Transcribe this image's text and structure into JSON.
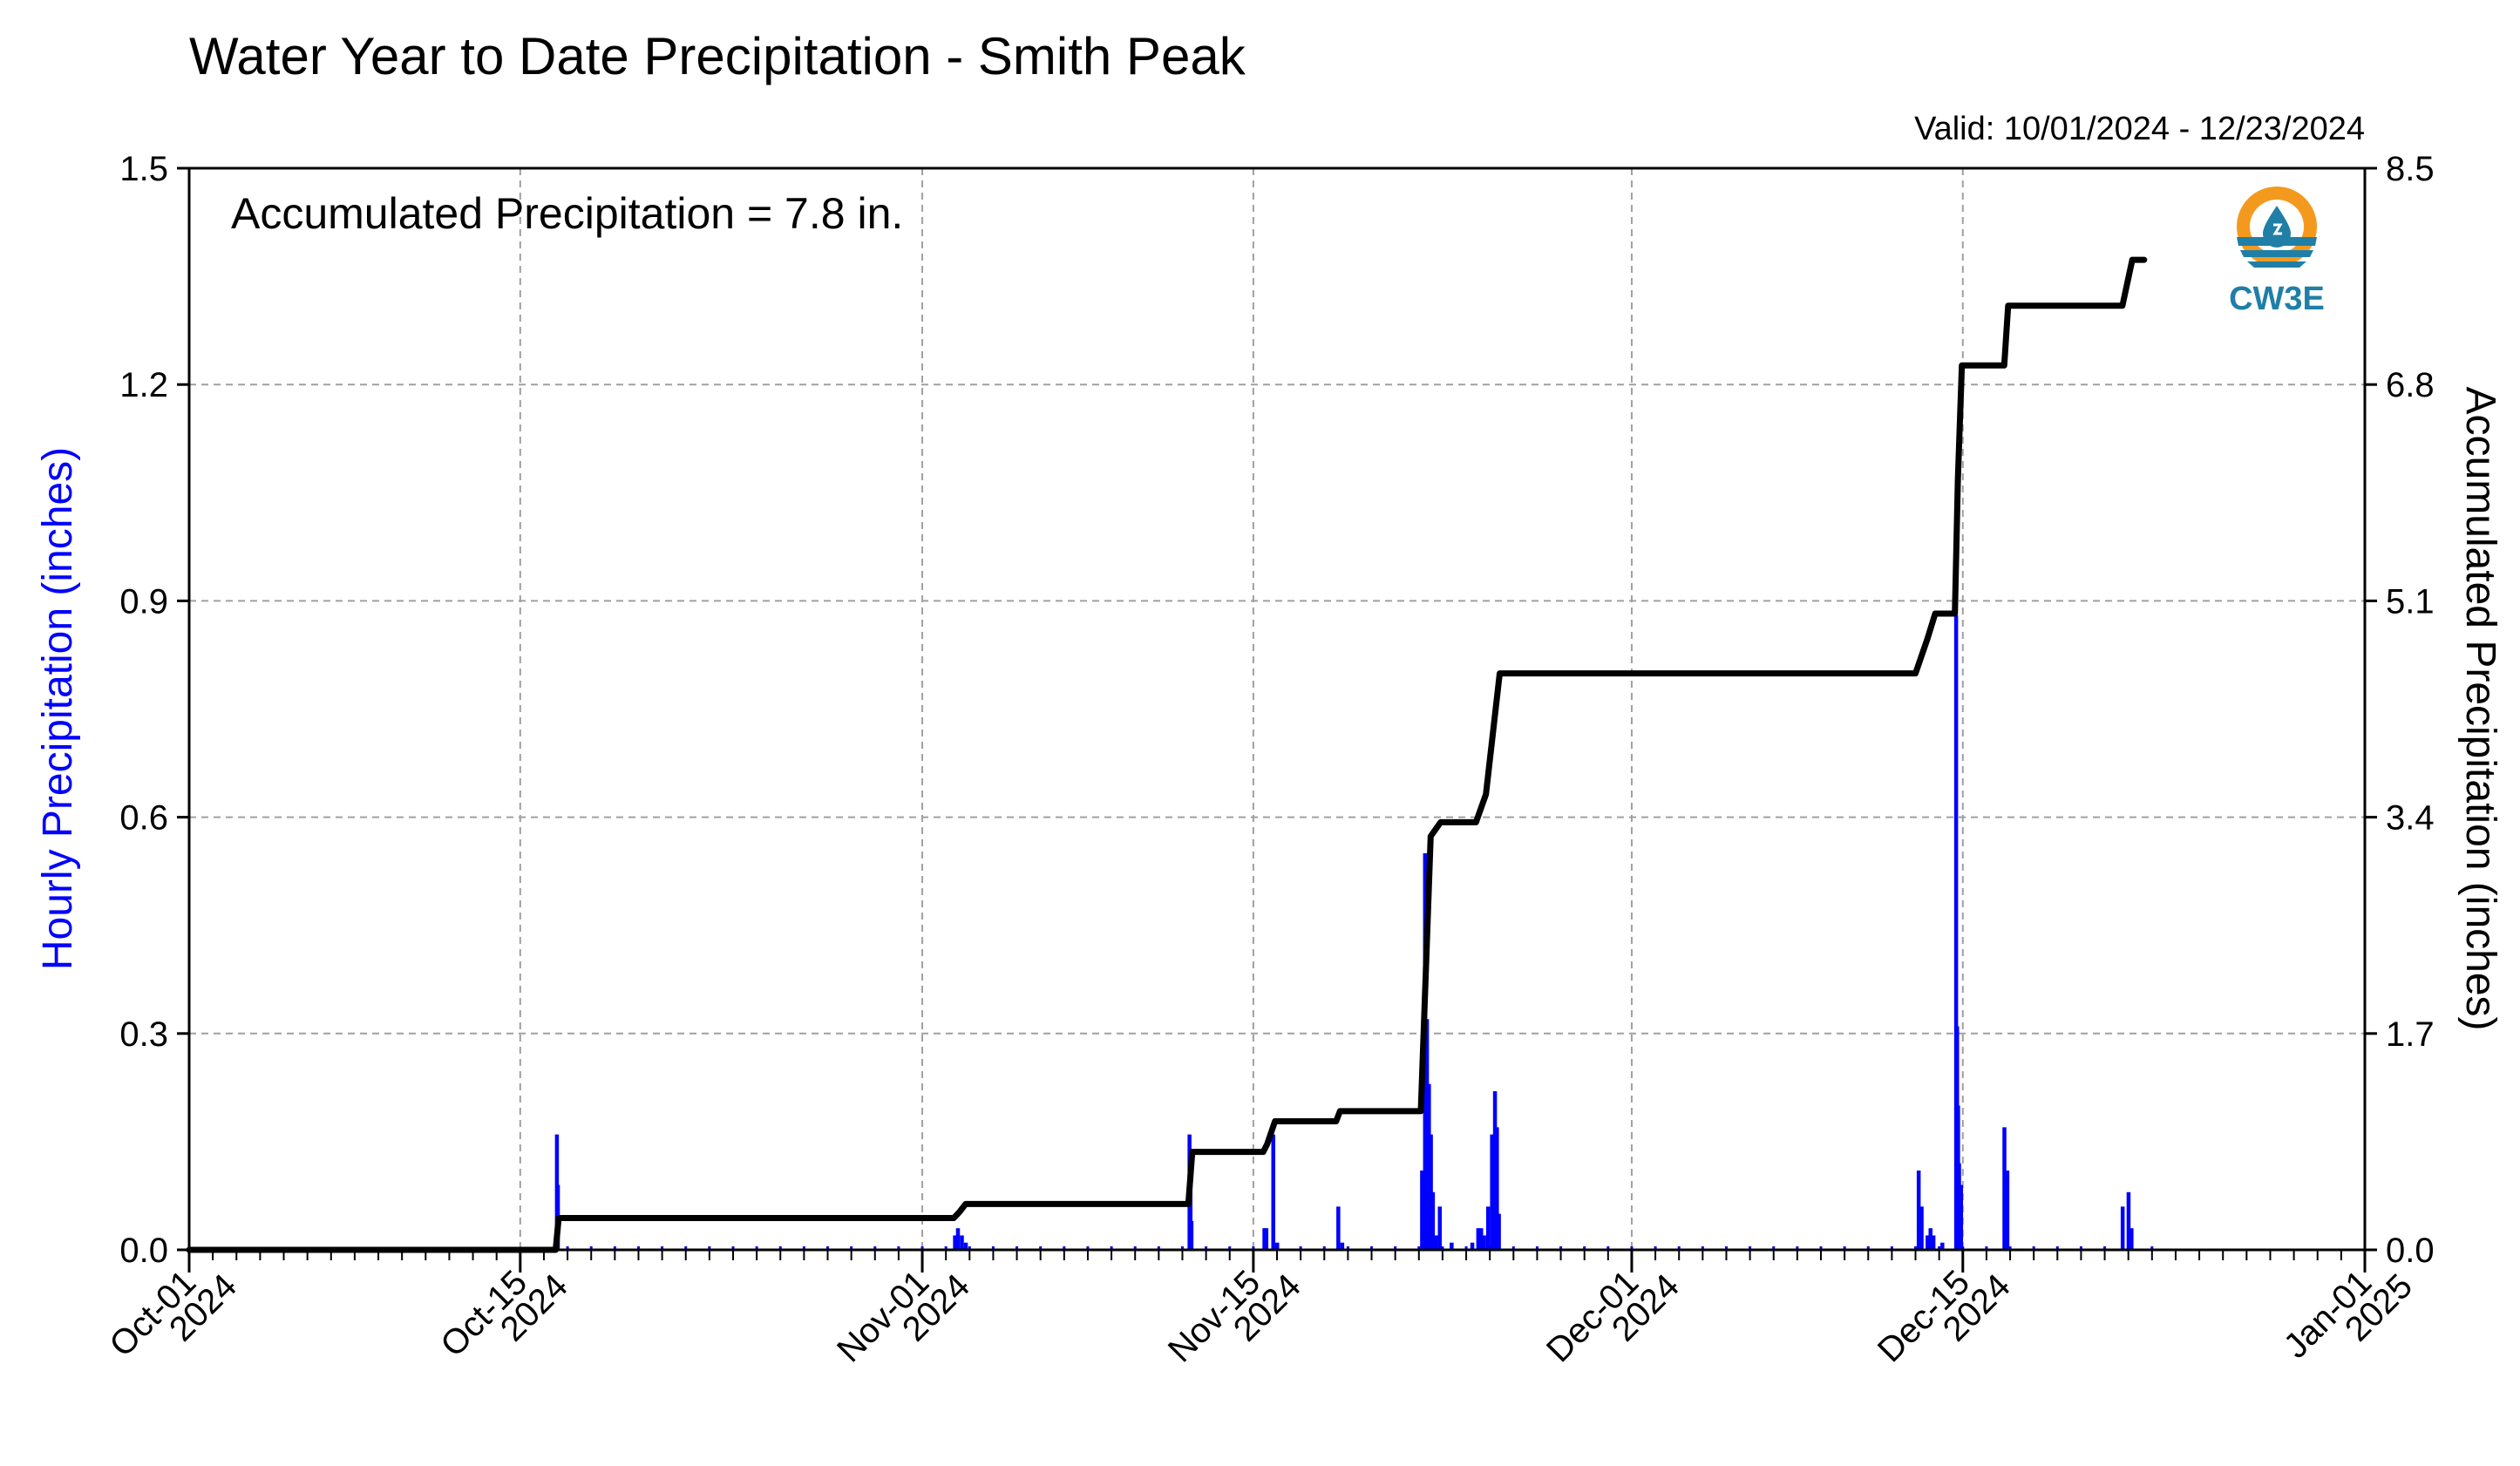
{
  "title": "Water Year to Date Precipitation - Smith Peak",
  "valid_text": "Valid: 10/01/2024 - 12/23/2024",
  "annotation": "Accumulated Precipitation = 7.8 in.",
  "logo": {
    "text": "CW3E",
    "icon": "water-drop-sun-logo",
    "colors": {
      "ring": "#F39A1E",
      "water": "#1F7FA6"
    }
  },
  "chart_data": {
    "type": "bar+line",
    "x_axis": {
      "start": "2024-10-01",
      "end": "2025-01-01",
      "ticks": [
        {
          "date": "2024-10-01",
          "label1": "Oct-01",
          "label2": "2024"
        },
        {
          "date": "2024-10-15",
          "label1": "Oct-15",
          "label2": "2024"
        },
        {
          "date": "2024-11-01",
          "label1": "Nov-01",
          "label2": "2024"
        },
        {
          "date": "2024-11-15",
          "label1": "Nov-15",
          "label2": "2024"
        },
        {
          "date": "2024-12-01",
          "label1": "Dec-01",
          "label2": "2024"
        },
        {
          "date": "2024-12-15",
          "label1": "Dec-15",
          "label2": "2024"
        },
        {
          "date": "2025-01-01",
          "label1": "Jan-01",
          "label2": "2025"
        }
      ]
    },
    "y_left": {
      "label": "Hourly Precipitation (inches)",
      "color": "#0000FF",
      "ylim": [
        0,
        1.5
      ],
      "ticks": [
        "0.0",
        "0.3",
        "0.6",
        "0.9",
        "1.2",
        "1.5"
      ]
    },
    "y_right": {
      "label": "Accumulated Precipitation (inches)",
      "color": "#000000",
      "ylim": [
        0,
        8.5
      ],
      "ticks": [
        "0.0",
        "1.7",
        "3.4",
        "5.1",
        "6.8",
        "8.5"
      ]
    },
    "grid": true,
    "hourly_bars": {
      "color": "#0000FF",
      "points": [
        [
          "2024-10-16T13:00",
          0.16
        ],
        [
          "2024-10-16T14:00",
          0.09
        ],
        [
          "2024-11-02T09:00",
          0.02
        ],
        [
          "2024-11-02T12:00",
          0.03
        ],
        [
          "2024-11-02T16:00",
          0.02
        ],
        [
          "2024-11-02T20:00",
          0.01
        ],
        [
          "2024-11-12T07:00",
          0.16
        ],
        [
          "2024-11-12T08:00",
          0.1
        ],
        [
          "2024-11-12T09:00",
          0.04
        ],
        [
          "2024-11-15T11:00",
          0.03
        ],
        [
          "2024-11-15T13:00",
          0.03
        ],
        [
          "2024-11-15T20:00",
          0.16
        ],
        [
          "2024-11-16T00:00",
          0.01
        ],
        [
          "2024-11-18T14:00",
          0.06
        ],
        [
          "2024-11-18T18:00",
          0.01
        ],
        [
          "2024-11-22T03:00",
          0.11
        ],
        [
          "2024-11-22T06:00",
          0.55
        ],
        [
          "2024-11-22T08:00",
          0.32
        ],
        [
          "2024-11-22T10:00",
          0.23
        ],
        [
          "2024-11-22T12:00",
          0.16
        ],
        [
          "2024-11-22T14:00",
          0.08
        ],
        [
          "2024-11-22T17:00",
          0.02
        ],
        [
          "2024-11-22T21:00",
          0.06
        ],
        [
          "2024-11-23T09:00",
          0.01
        ],
        [
          "2024-11-24T06:00",
          0.01
        ],
        [
          "2024-11-24T12:00",
          0.03
        ],
        [
          "2024-11-24T15:00",
          0.03
        ],
        [
          "2024-11-24T18:00",
          0.02
        ],
        [
          "2024-11-24T22:00",
          0.06
        ],
        [
          "2024-11-25T02:00",
          0.16
        ],
        [
          "2024-11-25T05:00",
          0.22
        ],
        [
          "2024-11-25T07:00",
          0.17
        ],
        [
          "2024-11-25T09:00",
          0.05
        ],
        [
          "2024-12-13T03:00",
          0.11
        ],
        [
          "2024-12-13T06:00",
          0.06
        ],
        [
          "2024-12-13T12:00",
          0.02
        ],
        [
          "2024-12-13T15:00",
          0.03
        ],
        [
          "2024-12-13T18:00",
          0.02
        ],
        [
          "2024-12-14T03:00",
          0.01
        ],
        [
          "2024-12-14T17:00",
          0.88
        ],
        [
          "2024-12-14T18:00",
          0.31
        ],
        [
          "2024-12-14T19:00",
          0.2
        ],
        [
          "2024-12-14T20:00",
          0.12
        ],
        [
          "2024-12-14T22:00",
          0.09
        ],
        [
          "2024-12-16T18:00",
          0.17
        ],
        [
          "2024-12-16T21:00",
          0.11
        ],
        [
          "2024-12-21T18:00",
          0.06
        ],
        [
          "2024-12-22T00:00",
          0.08
        ],
        [
          "2024-12-22T03:00",
          0.03
        ]
      ]
    },
    "accumulated_line": {
      "color": "#000000",
      "points": [
        [
          "2024-10-01T00:00",
          0.0
        ],
        [
          "2024-10-16T12:00",
          0.0
        ],
        [
          "2024-10-16T15:00",
          0.25
        ],
        [
          "2024-11-02T08:00",
          0.25
        ],
        [
          "2024-11-02T14:00",
          0.3
        ],
        [
          "2024-11-02T20:00",
          0.36
        ],
        [
          "2024-11-12T06:00",
          0.36
        ],
        [
          "2024-11-12T10:00",
          0.77
        ],
        [
          "2024-11-15T10:00",
          0.77
        ],
        [
          "2024-11-15T14:00",
          0.83
        ],
        [
          "2024-11-15T22:00",
          1.01
        ],
        [
          "2024-11-18T12:00",
          1.01
        ],
        [
          "2024-11-18T16:00",
          1.09
        ],
        [
          "2024-11-22T02:00",
          1.09
        ],
        [
          "2024-11-22T12:00",
          3.25
        ],
        [
          "2024-11-22T22:00",
          3.36
        ],
        [
          "2024-11-24T10:00",
          3.36
        ],
        [
          "2024-11-24T20:00",
          3.58
        ],
        [
          "2024-11-25T10:00",
          4.53
        ],
        [
          "2024-12-13T00:00",
          4.53
        ],
        [
          "2024-12-13T12:00",
          4.8
        ],
        [
          "2024-12-13T20:00",
          5.0
        ],
        [
          "2024-12-14T16:00",
          5.0
        ],
        [
          "2024-12-14T19:00",
          6.05
        ],
        [
          "2024-12-14T23:00",
          6.95
        ],
        [
          "2024-12-16T18:00",
          6.95
        ],
        [
          "2024-12-16T22:00",
          7.42
        ],
        [
          "2024-12-21T18:00",
          7.42
        ],
        [
          "2024-12-22T04:00",
          7.78
        ],
        [
          "2024-12-22T16:00",
          7.78
        ]
      ]
    }
  }
}
